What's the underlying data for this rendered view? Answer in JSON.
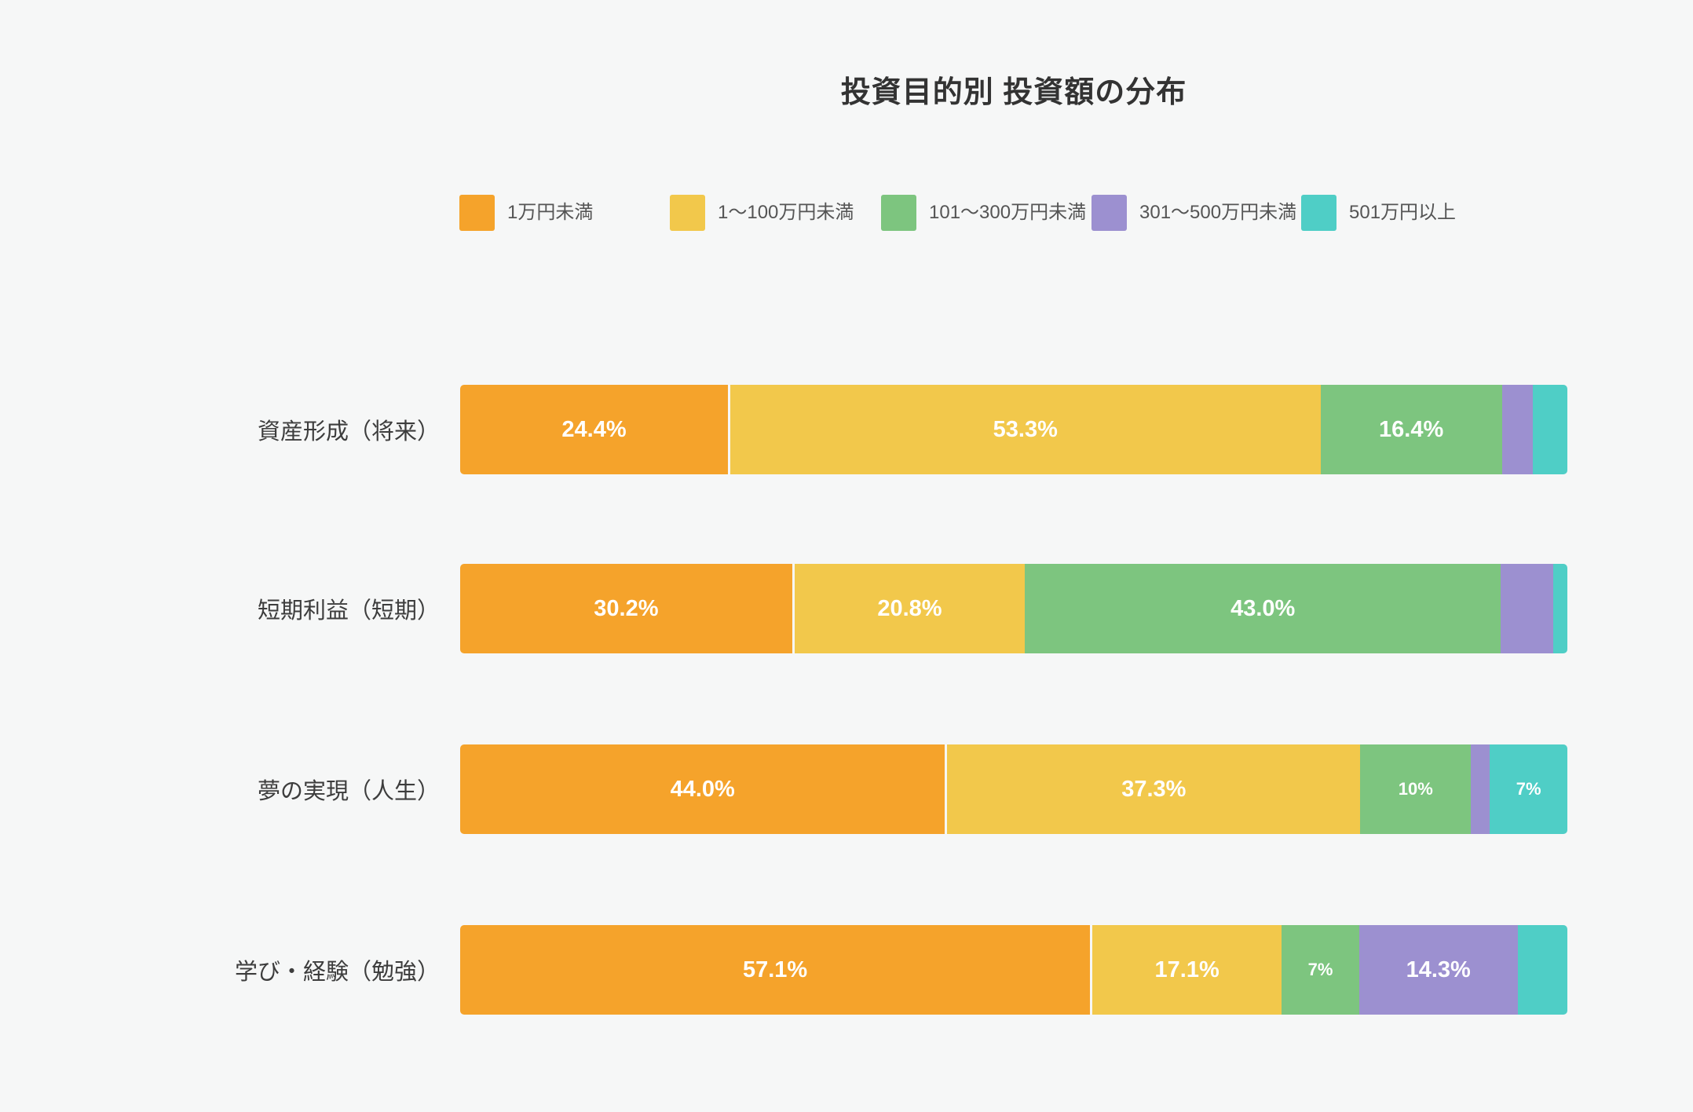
{
  "page": {
    "background_color": "#f6f7f7",
    "title_color": "#333333",
    "legend_text_color": "#555555",
    "category_label_color": "#3d3d3d",
    "value_label_color": "#ffffff"
  },
  "chart_data": {
    "type": "bar",
    "orientation": "horizontal",
    "stacked": true,
    "title": "投資目的別 投資額の分布",
    "legend_position": "top",
    "grid": false,
    "xlim": [
      0,
      100
    ],
    "unit": "%",
    "categories": [
      "資産形成（将来）",
      "短期利益（短期）",
      "夢の実現（人生）",
      "学び・経験（勉強）"
    ],
    "series": [
      {
        "name": "1万円未満",
        "color": "#F5A32B",
        "values": [
          24.4,
          30.2,
          44.0,
          57.1
        ],
        "labels": [
          "24.4%",
          "30.2%",
          "44.0%",
          "57.1%"
        ]
      },
      {
        "name": "1〜100万円未満",
        "color": "#F2C84B",
        "values": [
          53.3,
          20.8,
          37.3,
          17.1
        ],
        "labels": [
          "53.3%",
          "20.8%",
          "37.3%",
          "17.1%"
        ]
      },
      {
        "name": "101〜300万円未満",
        "color": "#7DC57F",
        "values": [
          16.4,
          43.0,
          10.0,
          7.0
        ],
        "labels": [
          "16.4%",
          "43.0%",
          "10%",
          "7%"
        ]
      },
      {
        "name": "301〜500万円未満",
        "color": "#9C90D0",
        "values": [
          2.8,
          4.7,
          1.7,
          14.3
        ],
        "labels": [
          "",
          "",
          "",
          "14.3%"
        ]
      },
      {
        "name": "501万円以上",
        "color": "#4FCEC6",
        "values": [
          3.1,
          1.3,
          7.0,
          4.5
        ],
        "labels": [
          "",
          "",
          "7%",
          ""
        ]
      }
    ]
  },
  "layout": {
    "legend_item_offsets": [
      0,
      268,
      537,
      805,
      1072
    ],
    "row_tops": [
      490,
      718,
      948,
      1178
    ],
    "small_label_threshold": 12
  }
}
